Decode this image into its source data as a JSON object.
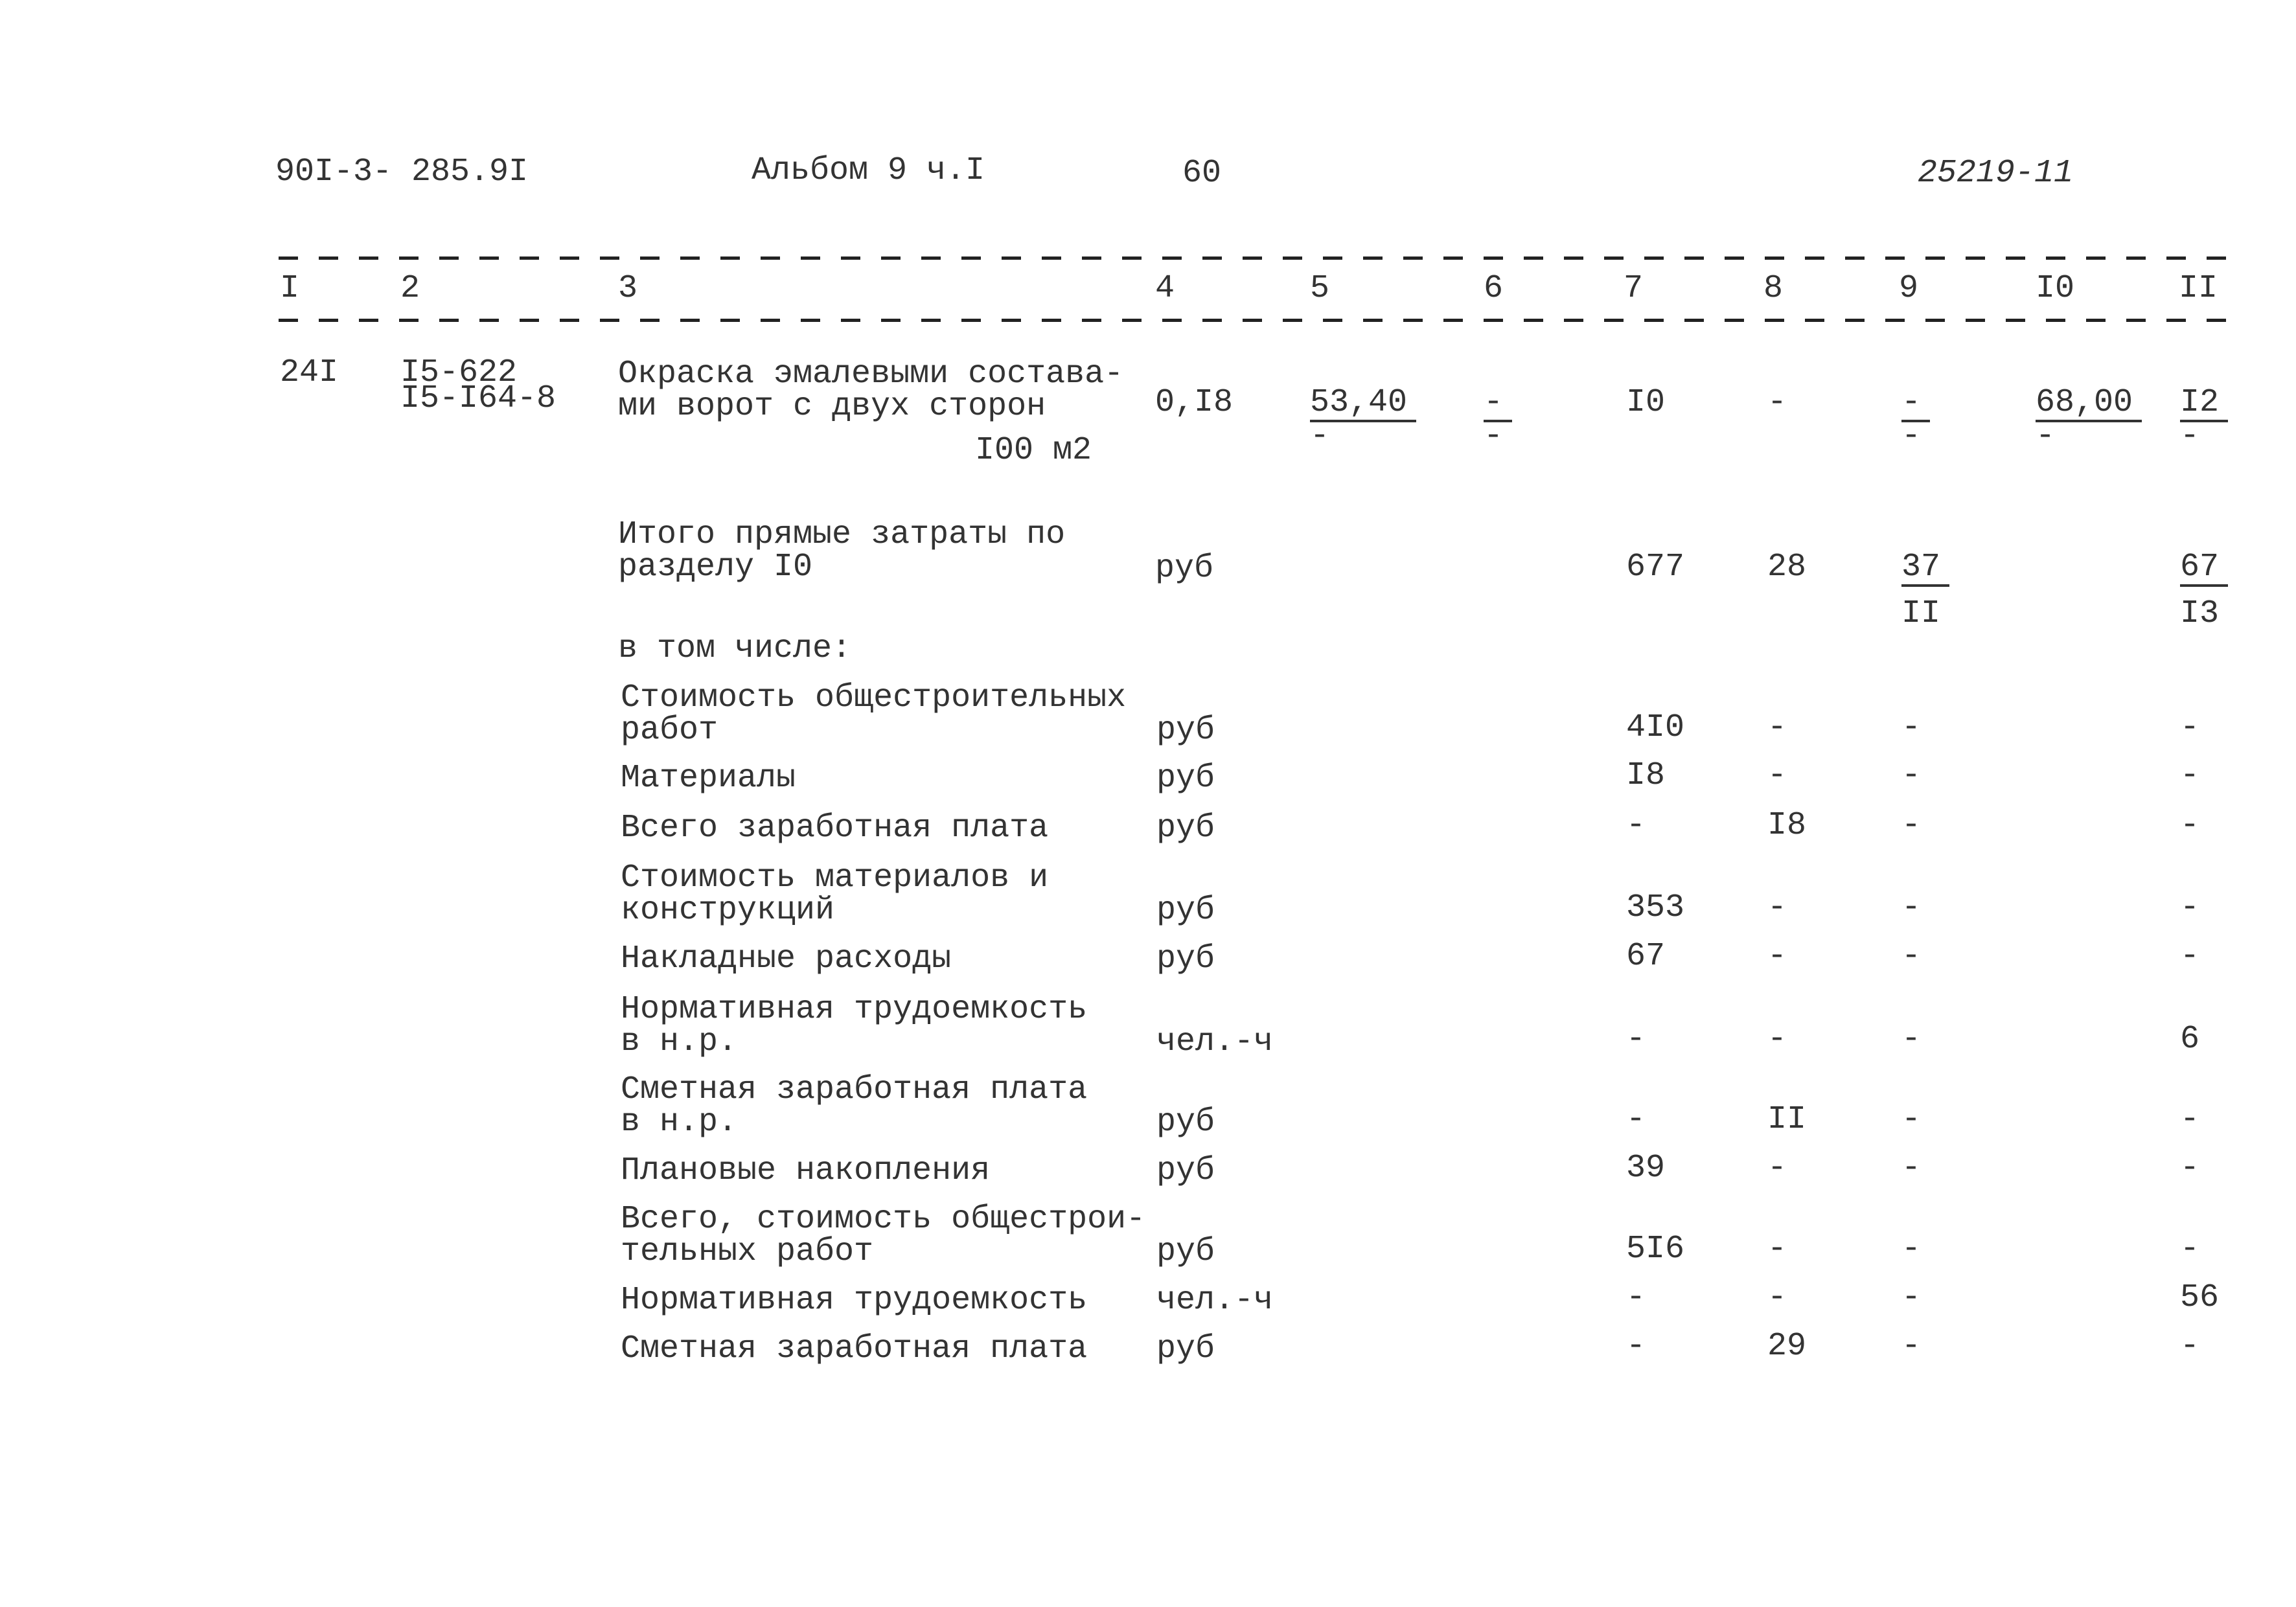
{
  "header": {
    "doc_code": "90I-3- 285.9I",
    "album": "Альбом 9 ч.I",
    "page": "60",
    "archive_no": "25219-11"
  },
  "column_numbers": [
    "I",
    "2",
    "3",
    "4",
    "5",
    "6",
    "7",
    "8",
    "9",
    "I0",
    "II"
  ],
  "item": {
    "no": "24I",
    "codes": [
      "I5-622",
      "I5-I64-8"
    ],
    "description": [
      "Окраска эмалевыми состава-",
      "ми ворот с двух сторон"
    ],
    "unit": "I00 м2",
    "quantity": "0,I8",
    "c5": {
      "top": "53,40",
      "bottom": "-"
    },
    "c6": {
      "top": "-",
      "bottom": "-"
    },
    "c7": "I0",
    "c8": "-",
    "c9": {
      "top": "-",
      "bottom": "-"
    },
    "c10": {
      "top": "68,00",
      "bottom": "-"
    },
    "c11": {
      "top": "I2",
      "bottom": "-"
    }
  },
  "total": {
    "label": [
      "Итого прямые затраты по",
      "разделу I0"
    ],
    "unit": "руб",
    "c7": "677",
    "c8": "28",
    "c9": {
      "top": "37",
      "bottom": "II"
    },
    "c11": {
      "top": "67",
      "bottom": "I3"
    }
  },
  "including_label": "в том числе:",
  "rows": [
    {
      "label": [
        "Стоимость общестроительных",
        "работ"
      ],
      "unit": "руб",
      "c7": "4I0",
      "c8": "-",
      "c9": "-",
      "c11": "-"
    },
    {
      "label": [
        "Материалы"
      ],
      "unit": "руб",
      "c7": "I8",
      "c8": "-",
      "c9": "-",
      "c11": "-"
    },
    {
      "label": [
        "Всего заработная плата"
      ],
      "unit": "руб",
      "c7": "-",
      "c8": "I8",
      "c9": "-",
      "c11": "-"
    },
    {
      "label": [
        "Стоимость материалов и",
        "конструкций"
      ],
      "unit": "руб",
      "c7": "353",
      "c8": "-",
      "c9": "-",
      "c11": "-"
    },
    {
      "label": [
        "Накладные расходы"
      ],
      "unit": "руб",
      "c7": "67",
      "c8": "-",
      "c9": "-",
      "c11": "-"
    },
    {
      "label": [
        "Нормативная трудоемкость",
        "в н.р."
      ],
      "unit": "чел.-ч",
      "c7": "-",
      "c8": "-",
      "c9": "-",
      "c11": "6"
    },
    {
      "label": [
        "Сметная заработная плата",
        "в н.р."
      ],
      "unit": "руб",
      "c7": "-",
      "c8": "II",
      "c9": "-",
      "c11": "-"
    },
    {
      "label": [
        "Плановые накопления"
      ],
      "unit": "руб",
      "c7": "39",
      "c8": "-",
      "c9": "-",
      "c11": "-"
    },
    {
      "label": [
        "Всего, стоимость общестрои-",
        "тельных работ"
      ],
      "unit": "руб",
      "c7": "5I6",
      "c8": "-",
      "c9": "-",
      "c11": "-"
    },
    {
      "label": [
        "Нормативная трудоемкость"
      ],
      "unit": "чел.-ч",
      "c7": "-",
      "c8": "-",
      "c9": "-",
      "c11": "56"
    },
    {
      "label": [
        "Сметная заработная плата"
      ],
      "unit": "руб",
      "c7": "-",
      "c8": "29",
      "c9": "-",
      "c11": "-"
    }
  ]
}
